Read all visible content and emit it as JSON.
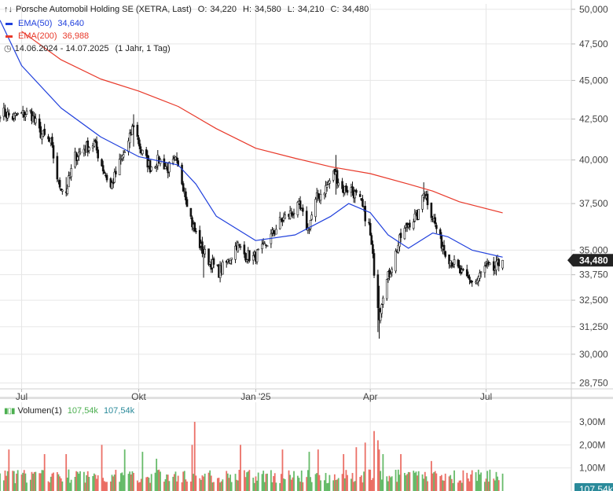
{
  "legend": {
    "title": "Porsche Automobil Holding SE (XETRA, Last)",
    "ohlc": {
      "o_label": "O:",
      "o": "34,220",
      "h_label": "H:",
      "h": "34,580",
      "l_label": "L:",
      "l": "34,210",
      "c_label": "C:",
      "c": "34,480"
    },
    "ema50": {
      "label": "EMA(50)",
      "value": "34,640",
      "color": "#1f3fdc"
    },
    "ema200": {
      "label": "EMA(200)",
      "value": "36,988",
      "color": "#e8392a"
    },
    "period": "14.06.2024 - 14.07.2025",
    "interval": "(1 Jahr, 1 Tag)",
    "volume_label": "Volumen(1)",
    "volume_value_a": "107,54k",
    "volume_value_b": "107,54k"
  },
  "colors": {
    "candle": "#111111",
    "up_volume": "#4caf50",
    "down_volume": "#e8574c",
    "last_badge": "#222222",
    "volume_badge": "#2a8a9a",
    "grid": "#e6e6e6"
  },
  "chart_data": [
    {
      "type": "candlestick",
      "title": "Porsche Automobil Holding SE (XETRA, Last)",
      "x_ticks": [
        "Jul",
        "Okt",
        "Jan '25",
        "Apr",
        "Jul"
      ],
      "x_tick_dates": [
        "2024-07-01",
        "2024-10-01",
        "2025-01-01",
        "2025-04-01",
        "2025-07-01"
      ],
      "x_range": [
        "2024-06-14",
        "2025-09-06"
      ],
      "y_ticks": [
        "50,000",
        "47,500",
        "45,000",
        "42,500",
        "40,000",
        "37,500",
        "35,000",
        "33,750",
        "32,500",
        "31,250",
        "30,000",
        "28,750"
      ],
      "y_tick_values": [
        50,
        47.5,
        45,
        42.5,
        40,
        37.5,
        35,
        33.75,
        32.5,
        31.25,
        30,
        28.75
      ],
      "y_range": [
        28.5,
        50.4
      ],
      "last_value": "34,480",
      "close_anchors": [
        [
          "2024-06-14",
          43.0
        ],
        [
          "2024-06-24",
          42.6
        ],
        [
          "2024-07-01",
          42.8
        ],
        [
          "2024-07-08",
          42.9
        ],
        [
          "2024-07-15",
          41.7
        ],
        [
          "2024-07-24",
          41.0
        ],
        [
          "2024-07-30",
          38.6
        ],
        [
          "2024-08-05",
          38.2
        ],
        [
          "2024-08-12",
          40.2
        ],
        [
          "2024-08-19",
          40.7
        ],
        [
          "2024-08-27",
          41.0
        ],
        [
          "2024-09-03",
          39.5
        ],
        [
          "2024-09-09",
          38.4
        ],
        [
          "2024-09-16",
          39.8
        ],
        [
          "2024-09-23",
          41.0
        ],
        [
          "2024-09-27",
          42.2
        ],
        [
          "2024-10-03",
          40.5
        ],
        [
          "2024-10-10",
          39.6
        ],
        [
          "2024-10-17",
          40.0
        ],
        [
          "2024-10-24",
          39.5
        ],
        [
          "2024-10-30",
          39.9
        ],
        [
          "2024-11-06",
          38.3
        ],
        [
          "2024-11-12",
          36.4
        ],
        [
          "2024-11-19",
          35.1
        ],
        [
          "2024-11-26",
          34.4
        ],
        [
          "2024-12-03",
          33.9
        ],
        [
          "2024-12-10",
          34.4
        ],
        [
          "2024-12-17",
          35.3
        ],
        [
          "2024-12-23",
          34.8
        ],
        [
          "2024-12-30",
          34.6
        ],
        [
          "2025-01-06",
          35.0
        ],
        [
          "2025-01-13",
          35.7
        ],
        [
          "2025-01-20",
          36.5
        ],
        [
          "2025-01-27",
          36.9
        ],
        [
          "2025-02-04",
          37.3
        ],
        [
          "2025-02-11",
          36.1
        ],
        [
          "2025-02-18",
          37.8
        ],
        [
          "2025-02-25",
          38.4
        ],
        [
          "2025-03-04",
          39.3
        ],
        [
          "2025-03-10",
          38.3
        ],
        [
          "2025-03-17",
          38.3
        ],
        [
          "2025-03-24",
          37.6
        ],
        [
          "2025-03-31",
          36.3
        ],
        [
          "2025-04-04",
          34.0
        ],
        [
          "2025-04-08",
          31.8
        ],
        [
          "2025-04-11",
          32.9
        ],
        [
          "2025-04-17",
          34.0
        ],
        [
          "2025-04-25",
          35.7
        ],
        [
          "2025-05-02",
          36.5
        ],
        [
          "2025-05-09",
          36.9
        ],
        [
          "2025-05-13",
          38.3
        ],
        [
          "2025-05-19",
          37.0
        ],
        [
          "2025-05-26",
          35.5
        ],
        [
          "2025-06-02",
          34.6
        ],
        [
          "2025-06-09",
          34.0
        ],
        [
          "2025-06-16",
          33.5
        ],
        [
          "2025-06-23",
          33.4
        ],
        [
          "2025-06-30",
          34.1
        ],
        [
          "2025-07-07",
          34.0
        ],
        [
          "2025-07-14",
          34.48
        ]
      ],
      "candle_overrides": [
        [
          "2025-04-08",
          30.7,
          33.2
        ],
        [
          "2025-04-07",
          31.0,
          34.0
        ],
        [
          "2024-09-27",
          40.8,
          42.8
        ],
        [
          "2025-03-05",
          38.0,
          40.3
        ],
        [
          "2024-11-21",
          33.6,
          35.2
        ],
        [
          "2024-08-05",
          38.0,
          39.0
        ],
        [
          "2025-05-13",
          37.6,
          38.7
        ]
      ]
    },
    {
      "type": "line",
      "name": "EMA(50)",
      "color": "#1f3fdc",
      "points": [
        [
          "2024-06-14",
          49.2
        ],
        [
          "2024-07-01",
          46.0
        ],
        [
          "2024-08-01",
          43.2
        ],
        [
          "2024-09-01",
          41.4
        ],
        [
          "2024-10-01",
          40.2
        ],
        [
          "2024-11-01",
          39.7
        ],
        [
          "2024-11-15",
          38.6
        ],
        [
          "2024-12-01",
          36.8
        ],
        [
          "2025-01-01",
          35.5
        ],
        [
          "2025-02-01",
          35.8
        ],
        [
          "2025-03-01",
          36.8
        ],
        [
          "2025-03-15",
          37.5
        ],
        [
          "2025-04-01",
          37.0
        ],
        [
          "2025-04-15",
          35.8
        ],
        [
          "2025-05-01",
          35.1
        ],
        [
          "2025-05-20",
          35.9
        ],
        [
          "2025-06-01",
          35.7
        ],
        [
          "2025-06-20",
          35.0
        ],
        [
          "2025-07-14",
          34.64
        ]
      ]
    },
    {
      "type": "line",
      "name": "EMA(200)",
      "color": "#e8392a",
      "points": [
        [
          "2024-07-01",
          48.4
        ],
        [
          "2024-08-01",
          46.4
        ],
        [
          "2024-09-01",
          45.1
        ],
        [
          "2024-10-01",
          44.3
        ],
        [
          "2024-11-01",
          43.3
        ],
        [
          "2024-12-01",
          41.9
        ],
        [
          "2025-01-01",
          40.7
        ],
        [
          "2025-02-01",
          40.1
        ],
        [
          "2025-03-01",
          39.6
        ],
        [
          "2025-04-01",
          39.2
        ],
        [
          "2025-05-01",
          38.6
        ],
        [
          "2025-05-20",
          38.2
        ],
        [
          "2025-06-10",
          37.6
        ],
        [
          "2025-07-14",
          36.988
        ]
      ]
    },
    {
      "type": "bar",
      "name": "Volumen(1)",
      "y_ticks": [
        "3,00M",
        "2,00M",
        "1,00M"
      ],
      "y_tick_values": [
        3,
        2,
        1
      ],
      "last_value": "107,54k",
      "volume_baseline_millions": 0.75,
      "volume_spikes_millions": [
        [
          "2024-06-21",
          1.8
        ],
        [
          "2024-07-19",
          1.6
        ],
        [
          "2024-08-05",
          1.6
        ],
        [
          "2024-09-02",
          2.0
        ],
        [
          "2024-09-20",
          1.8
        ],
        [
          "2024-10-04",
          1.7
        ],
        [
          "2024-10-15",
          1.4
        ],
        [
          "2024-11-12",
          2.0
        ],
        [
          "2024-11-14",
          3.0
        ],
        [
          "2024-12-20",
          2.0
        ],
        [
          "2025-01-22",
          1.8
        ],
        [
          "2025-02-12",
          1.7
        ],
        [
          "2025-02-19",
          1.8
        ],
        [
          "2025-03-11",
          1.6
        ],
        [
          "2025-03-21",
          1.9
        ],
        [
          "2025-03-28",
          2.1
        ],
        [
          "2025-04-04",
          2.6
        ],
        [
          "2025-04-07",
          2.2
        ],
        [
          "2025-04-08",
          1.8
        ],
        [
          "2025-04-11",
          1.6
        ],
        [
          "2025-04-25",
          1.6
        ],
        [
          "2025-05-19",
          1.3
        ],
        [
          "2025-06-20",
          0.9
        ]
      ]
    }
  ]
}
